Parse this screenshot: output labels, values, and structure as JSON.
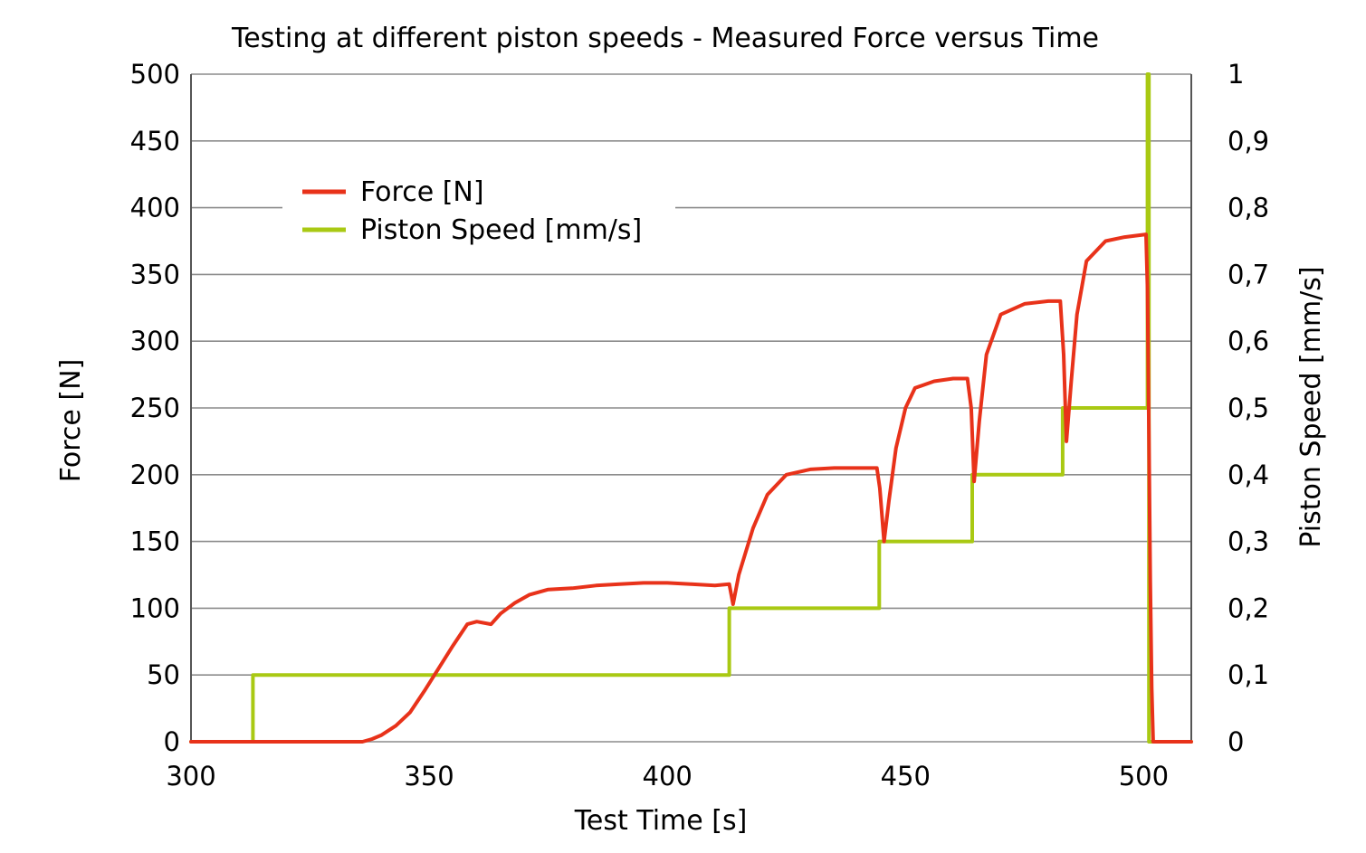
{
  "chart_data": {
    "type": "line",
    "title": "Testing at different piston speeds - Measured Force versus Time",
    "xlabel": "Test Time [s]",
    "ylabel": "Force [N]",
    "y2label": "Piston Speed [mm/s]",
    "xlim": [
      300,
      510
    ],
    "ylim": [
      0,
      500
    ],
    "y2lim": [
      0,
      1
    ],
    "x_ticks": [
      "300",
      "350",
      "400",
      "450",
      "500"
    ],
    "x_tick_values": [
      300,
      350,
      400,
      450,
      500
    ],
    "y_ticks": [
      "0",
      "50",
      "100",
      "150",
      "200",
      "250",
      "300",
      "350",
      "400",
      "450",
      "500"
    ],
    "y_tick_values": [
      0,
      50,
      100,
      150,
      200,
      250,
      300,
      350,
      400,
      450,
      500
    ],
    "y2_ticks": [
      "0",
      "0,1",
      "0,2",
      "0,3",
      "0,4",
      "0,5",
      "0,6",
      "0,7",
      "0,8",
      "0,9",
      "1"
    ],
    "y2_tick_values": [
      0,
      0.1,
      0.2,
      0.3,
      0.4,
      0.5,
      0.6,
      0.7,
      0.8,
      0.9,
      1
    ],
    "grid": true,
    "legend_position": "upper-left",
    "series": [
      {
        "name": "Force [N]",
        "axis": "left",
        "color": "#e8321a",
        "x": [
          300,
          313,
          320,
          330,
          336,
          338,
          340,
          343,
          346,
          349,
          352,
          355,
          358,
          360,
          363,
          365,
          368,
          371,
          375,
          380,
          385,
          390,
          395,
          400,
          405,
          410,
          413,
          413.8,
          415,
          418,
          421,
          425,
          430,
          435,
          440,
          444,
          444.6,
          445.5,
          446.5,
          448,
          450,
          452,
          456,
          460,
          463,
          463.8,
          464.4,
          465.5,
          467,
          470,
          475,
          480,
          482.5,
          483.2,
          483.8,
          484.8,
          486,
          488,
          492,
          496,
          500.5,
          500.8,
          501.1,
          501.4,
          501.7,
          502,
          510
        ],
        "y": [
          0,
          0,
          0,
          0,
          0,
          2,
          5,
          12,
          22,
          38,
          55,
          72,
          88,
          90,
          88,
          96,
          104,
          110,
          114,
          115,
          117,
          118,
          119,
          119,
          118,
          117,
          118,
          103,
          125,
          160,
          185,
          200,
          204,
          205,
          205,
          205,
          190,
          150,
          180,
          220,
          250,
          265,
          270,
          272,
          272,
          250,
          195,
          240,
          290,
          320,
          328,
          330,
          330,
          290,
          225,
          270,
          320,
          360,
          375,
          378,
          380,
          340,
          230,
          120,
          40,
          0,
          0
        ]
      },
      {
        "name": "Piston Speed [mm/s]",
        "axis": "right",
        "color": "#a9c913",
        "x": [
          300,
          313,
          313,
          413,
          413,
          444.5,
          444.5,
          464,
          464,
          483,
          483,
          500.8,
          500.8,
          501.1,
          501.1,
          510
        ],
        "y": [
          0,
          0,
          0.1,
          0.1,
          0.2,
          0.2,
          0.3,
          0.3,
          0.4,
          0.4,
          0.5,
          0.5,
          1.0,
          1.0,
          0,
          0
        ]
      }
    ]
  }
}
